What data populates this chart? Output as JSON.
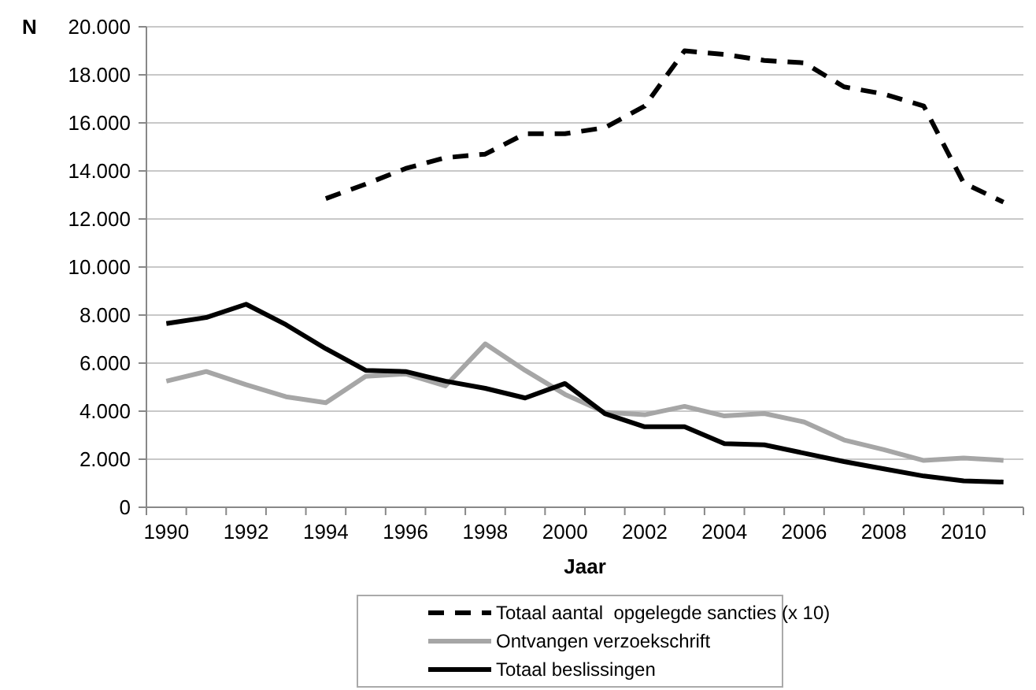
{
  "chart_data": {
    "type": "line",
    "xlabel": "Jaar",
    "ylabel": "N",
    "categories": [
      "1990",
      null,
      "1992",
      null,
      "1994",
      null,
      "1996",
      null,
      "1998",
      null,
      "2000",
      null,
      "2002",
      null,
      "2004",
      null,
      "2006",
      null,
      "2008",
      null,
      "2010",
      null
    ],
    "series": [
      {
        "name": "Totaal aantal  opgelegde sancties (x 10)",
        "color": "#000000",
        "line_style": "dashed",
        "values": [
          null,
          null,
          null,
          null,
          12850,
          13450,
          14100,
          14550,
          14700,
          15550,
          15550,
          15800,
          16700,
          19000,
          18850,
          18600,
          18500,
          17500,
          17200,
          16700,
          13500,
          12700
        ]
      },
      {
        "name": "Ontvangen verzoekschrift",
        "color": "#a6a6a6",
        "line_style": "solid",
        "values": [
          5250,
          5650,
          5100,
          4600,
          4350,
          5450,
          5550,
          5050,
          6800,
          5700,
          4700,
          3950,
          3850,
          4200,
          3800,
          3900,
          3550,
          2800,
          2400,
          1950,
          2050,
          1950
        ]
      },
      {
        "name": "Totaal beslissingen",
        "color": "#000000",
        "line_style": "solid",
        "values": [
          7650,
          7900,
          8450,
          7600,
          6600,
          5700,
          5650,
          5250,
          4950,
          4550,
          5150,
          3900,
          3350,
          3350,
          2650,
          2600,
          2250,
          1900,
          1600,
          1300,
          1100,
          1050
        ]
      }
    ],
    "ylim": [
      0,
      20000
    ],
    "yticks": [
      0,
      {
        "value": 2000,
        "label": "2.000"
      },
      {
        "value": 4000,
        "label": "4.000"
      },
      {
        "value": 6000,
        "label": "6.000"
      },
      {
        "value": 8000,
        "label": "8.000"
      },
      {
        "value": 10000,
        "label": "10.000"
      },
      {
        "value": 12000,
        "label": "12.000"
      },
      {
        "value": 14000,
        "label": "14.000"
      },
      {
        "value": 16000,
        "label": "16.000"
      },
      {
        "value": 18000,
        "label": "18.000"
      },
      {
        "value": 20000,
        "label": "20.000"
      }
    ],
    "grid": "y",
    "legend": "bottom"
  }
}
